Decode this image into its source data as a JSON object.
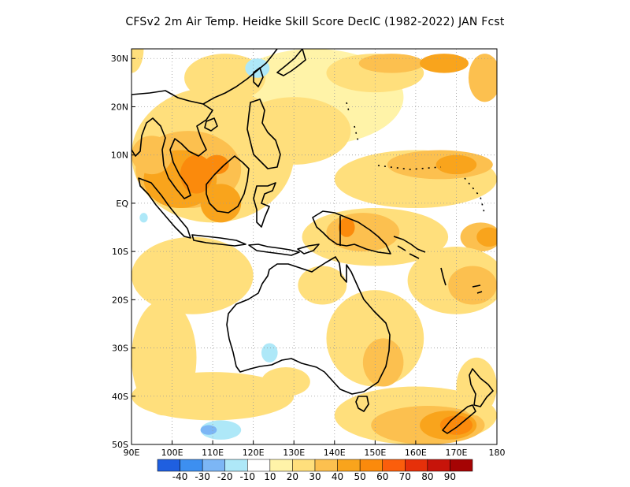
{
  "title": "CFSv2  2m Air Temp. Heidke Skill Score DecIC (1982-2022) JAN Fcst",
  "map": {
    "lon_range": [
      90,
      180
    ],
    "lat_range": [
      -50,
      32
    ],
    "lon_ticks": [
      {
        "value": 90,
        "label": "90E"
      },
      {
        "value": 100,
        "label": "100E"
      },
      {
        "value": 110,
        "label": "110E"
      },
      {
        "value": 120,
        "label": "120E"
      },
      {
        "value": 130,
        "label": "130E"
      },
      {
        "value": 140,
        "label": "140E"
      },
      {
        "value": 150,
        "label": "150E"
      },
      {
        "value": 160,
        "label": "160E"
      },
      {
        "value": 170,
        "label": "170E"
      },
      {
        "value": 180,
        "label": "180"
      }
    ],
    "lat_ticks": [
      {
        "value": 30,
        "label": "30N"
      },
      {
        "value": 20,
        "label": "20N"
      },
      {
        "value": 10,
        "label": "10N"
      },
      {
        "value": 0,
        "label": "EQ"
      },
      {
        "value": -10,
        "label": "10S"
      },
      {
        "value": -20,
        "label": "20S"
      },
      {
        "value": -30,
        "label": "30S"
      },
      {
        "value": -40,
        "label": "40S"
      },
      {
        "value": -50,
        "label": "50S"
      }
    ],
    "grid": "dotted"
  },
  "colorbar": {
    "colors": [
      "#1f5fe0",
      "#3d8ff0",
      "#7cb6f5",
      "#aee8f8",
      "#ffffff",
      "#fff3a8",
      "#ffdf7c",
      "#fcc04f",
      "#f9a41c",
      "#fb8a0c",
      "#fb5e0c",
      "#e6300a",
      "#c7140a",
      "#a50404"
    ],
    "labels": [
      "-40",
      "-30",
      "-20",
      "-10",
      "10",
      "20",
      "30",
      "40",
      "50",
      "60",
      "70",
      "80",
      "90"
    ]
  },
  "regions": [
    {
      "level": 20,
      "lon": 90,
      "lat": 32,
      "rx": 3,
      "ry": 5
    },
    {
      "level": 10,
      "lon": 135,
      "lat": 22,
      "rx": 22,
      "ry": 10
    },
    {
      "level": 20,
      "lon": 113,
      "lat": 26,
      "rx": 10,
      "ry": 5
    },
    {
      "level": 20,
      "lon": 150,
      "lat": 27,
      "rx": 12,
      "ry": 4
    },
    {
      "level": 30,
      "lon": 154,
      "lat": 29,
      "rx": 8,
      "ry": 2
    },
    {
      "level": 40,
      "lon": 167,
      "lat": 29,
      "rx": 6,
      "ry": 2
    },
    {
      "level": 30,
      "lon": 177,
      "lat": 26,
      "rx": 4,
      "ry": 5
    },
    {
      "level": 20,
      "lon": 130,
      "lat": 15,
      "rx": 14,
      "ry": 7
    },
    {
      "level": 20,
      "lon": 110,
      "lat": 10,
      "rx": 20,
      "ry": 14
    },
    {
      "level": 30,
      "lon": 104,
      "lat": 7,
      "rx": 13,
      "ry": 8
    },
    {
      "level": 40,
      "lon": 102,
      "lat": 5,
      "rx": 9,
      "ry": 6
    },
    {
      "level": 50,
      "lon": 106,
      "lat": 6,
      "rx": 4,
      "ry": 4
    },
    {
      "level": 30,
      "lon": 95,
      "lat": 10,
      "rx": 5,
      "ry": 4
    },
    {
      "level": 40,
      "lon": 112,
      "lat": 0,
      "rx": 5,
      "ry": 4
    },
    {
      "level": 50,
      "lon": 111,
      "lat": 8,
      "rx": 3,
      "ry": 2
    },
    {
      "level": 20,
      "lon": 160,
      "lat": 5,
      "rx": 20,
      "ry": 6
    },
    {
      "level": 30,
      "lon": 166,
      "lat": 8,
      "rx": 13,
      "ry": 3
    },
    {
      "level": 40,
      "lon": 170,
      "lat": 8,
      "rx": 5,
      "ry": 2
    },
    {
      "level": 20,
      "lon": 150,
      "lat": -7,
      "rx": 18,
      "ry": 6
    },
    {
      "level": 30,
      "lon": 147,
      "lat": -6,
      "rx": 9,
      "ry": 4
    },
    {
      "level": 50,
      "lon": 143,
      "lat": -5,
      "rx": 2,
      "ry": 2
    },
    {
      "level": 30,
      "lon": 176,
      "lat": -7,
      "rx": 5,
      "ry": 3
    },
    {
      "level": 40,
      "lon": 178,
      "lat": -7,
      "rx": 3,
      "ry": 2
    },
    {
      "level": 20,
      "lon": 170,
      "lat": -16,
      "rx": 12,
      "ry": 7
    },
    {
      "level": 30,
      "lon": 174,
      "lat": -17,
      "rx": 6,
      "ry": 4
    },
    {
      "level": 20,
      "lon": 105,
      "lat": -15,
      "rx": 15,
      "ry": 8
    },
    {
      "level": 20,
      "lon": 98,
      "lat": -32,
      "rx": 8,
      "ry": 12
    },
    {
      "level": 20,
      "lon": 110,
      "lat": -40,
      "rx": 20,
      "ry": 5
    },
    {
      "level": 20,
      "lon": 150,
      "lat": -28,
      "rx": 12,
      "ry": 10
    },
    {
      "level": 30,
      "lon": 152,
      "lat": -33,
      "rx": 5,
      "ry": 5
    },
    {
      "level": 20,
      "lon": 137,
      "lat": -17,
      "rx": 6,
      "ry": 4
    },
    {
      "level": 20,
      "lon": 160,
      "lat": -44,
      "rx": 20,
      "ry": 6
    },
    {
      "level": 30,
      "lon": 163,
      "lat": -46,
      "rx": 14,
      "ry": 4
    },
    {
      "level": 40,
      "lon": 168,
      "lat": -46,
      "rx": 7,
      "ry": 3
    },
    {
      "level": 50,
      "lon": 170,
      "lat": -46,
      "rx": 4,
      "ry": 2
    },
    {
      "level": 20,
      "lon": 175,
      "lat": -38,
      "rx": 5,
      "ry": 6
    },
    {
      "level": 20,
      "lon": 128,
      "lat": -37,
      "rx": 6,
      "ry": 3
    },
    {
      "level": -10,
      "lon": 112,
      "lat": -47,
      "rx": 5,
      "ry": 2
    },
    {
      "level": -20,
      "lon": 109,
      "lat": -47,
      "rx": 2,
      "ry": 1
    },
    {
      "level": -10,
      "lon": 121,
      "lat": 28,
      "rx": 3,
      "ry": 2
    },
    {
      "level": -10,
      "lon": 124,
      "lat": -31,
      "rx": 2,
      "ry": 2
    },
    {
      "level": -10,
      "lon": 93,
      "lat": -3,
      "rx": 1,
      "ry": 1
    }
  ]
}
